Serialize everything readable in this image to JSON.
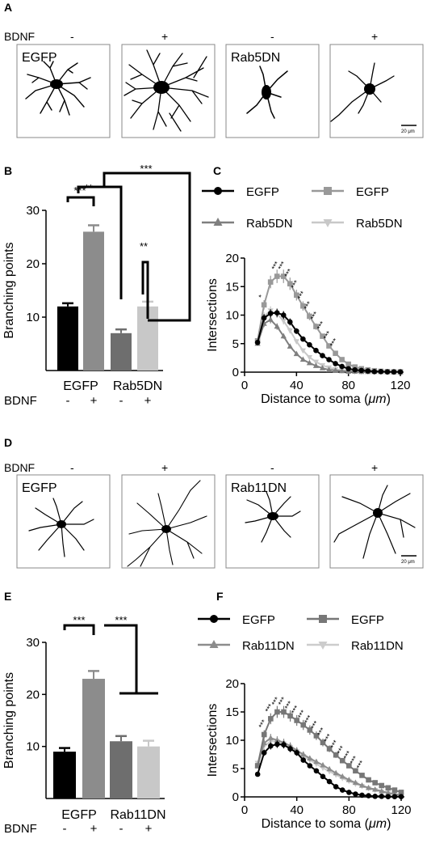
{
  "panels": {
    "A": {
      "letter": "A",
      "bdnf_label": "BDNF",
      "signs": [
        "-",
        "+",
        "-",
        "+"
      ],
      "box_labels": [
        "EGFP",
        "",
        "Rab5DN",
        ""
      ],
      "scale_bar": "20 μm"
    },
    "D": {
      "letter": "D",
      "bdnf_label": "BDNF",
      "signs": [
        "-",
        "+",
        "-",
        "+"
      ],
      "box_labels": [
        "EGFP",
        "",
        "Rab11DN",
        ""
      ],
      "scale_bar": "20 μm"
    }
  },
  "chart_data": [
    {
      "id": "B",
      "letter": "B",
      "type": "bar",
      "ylabel": "Branching points",
      "yticks": [
        10,
        20,
        30
      ],
      "ylim": [
        0,
        30
      ],
      "categories": [
        "EGFP -",
        "EGFP +",
        "Rab5DN -",
        "Rab5DN +"
      ],
      "values": [
        12,
        26,
        7,
        12
      ],
      "errors": [
        0.6,
        1.2,
        0.7,
        0.9
      ],
      "colors": [
        "#000000",
        "#8c8c8c",
        "#6e6e6e",
        "#c8c8c8"
      ],
      "group_labels": [
        "EGFP",
        "Rab5DN"
      ],
      "bdnf_label": "BDNF",
      "signs": [
        "-",
        "+",
        "-",
        "+"
      ],
      "significance": [
        {
          "from": 0,
          "to": 1,
          "label": "***"
        },
        {
          "from": 1,
          "to": 2,
          "label": "**"
        },
        {
          "from": 2,
          "to": 3,
          "label": "**"
        },
        {
          "from": 0,
          "to": 3,
          "label": "***"
        }
      ]
    },
    {
      "id": "C",
      "letter": "C",
      "type": "line",
      "xlabel_prefix": "Distance to soma (",
      "xlabel_unit": "μm",
      "xlabel_suffix": ")",
      "ylabel": "Intersections",
      "xticks": [
        0,
        40,
        80,
        120
      ],
      "yticks": [
        0,
        5,
        10,
        15,
        20
      ],
      "xlim": [
        0,
        120
      ],
      "ylim": [
        0,
        20
      ],
      "x": [
        10,
        15,
        20,
        25,
        30,
        35,
        40,
        45,
        50,
        55,
        60,
        65,
        70,
        75,
        80,
        85,
        90,
        95,
        100,
        105,
        110,
        115,
        120
      ],
      "series": [
        {
          "name": "EGFP",
          "color": "#000000",
          "marker": "circle",
          "values": [
            5.2,
            9.5,
            10.3,
            10.4,
            10,
            8.8,
            7.2,
            5.8,
            4.8,
            3.8,
            2.9,
            2.2,
            1.5,
            1.0,
            0.6,
            0.4,
            0.3,
            0.2,
            0.1,
            0.1,
            0.05,
            0.05,
            0.05
          ]
        },
        {
          "name": "EGFP",
          "color": "#999999",
          "marker": "square",
          "values": [
            5.5,
            11.8,
            15.8,
            16.8,
            16.8,
            15.5,
            13.5,
            11.6,
            9.8,
            8.0,
            6.3,
            4.6,
            3.3,
            2.2,
            1.4,
            0.9,
            0.6,
            0.4,
            0.25,
            0.15,
            0.1,
            0.05,
            0.05
          ]
        },
        {
          "name": "Rab5DN",
          "color": "#7f7f7f",
          "marker": "triangle-up",
          "values": [
            5.0,
            8.5,
            9.2,
            8.0,
            6.3,
            4.5,
            3.2,
            2.2,
            1.6,
            1.1,
            0.7,
            0.4,
            0.3,
            0.2,
            0.1,
            0.1,
            0.05,
            0.05,
            0.05,
            0.05,
            0.05,
            0.05,
            0.05
          ]
        },
        {
          "name": "Rab5DN",
          "color": "#c8c8c8",
          "marker": "triangle-down",
          "values": [
            5.3,
            9.8,
            10.8,
            10.2,
            9.0,
            7.3,
            5.4,
            3.8,
            2.6,
            1.8,
            1.2,
            0.8,
            0.5,
            0.3,
            0.2,
            0.1,
            0.1,
            0.05,
            0.05,
            0.05,
            0.05,
            0.05,
            0.05
          ]
        }
      ],
      "stars": [
        {
          "x": 15,
          "label": "*"
        },
        {
          "x": 25,
          "label": "***"
        },
        {
          "x": 30,
          "label": "***"
        },
        {
          "x": 35,
          "label": "***"
        },
        {
          "x": 40,
          "label": "***"
        },
        {
          "x": 45,
          "label": "***"
        },
        {
          "x": 50,
          "label": "***"
        },
        {
          "x": 55,
          "label": "***"
        },
        {
          "x": 60,
          "label": "***"
        },
        {
          "x": 65,
          "label": "***"
        },
        {
          "x": 70,
          "label": "***"
        }
      ]
    },
    {
      "id": "E",
      "letter": "E",
      "type": "bar",
      "ylabel": "Branching points",
      "yticks": [
        10,
        20,
        30
      ],
      "ylim": [
        0,
        30
      ],
      "categories": [
        "EGFP -",
        "EGFP +",
        "Rab11DN -",
        "Rab11DN +"
      ],
      "values": [
        9,
        23,
        11,
        10
      ],
      "errors": [
        0.7,
        1.5,
        1.0,
        1.1
      ],
      "colors": [
        "#000000",
        "#8c8c8c",
        "#6e6e6e",
        "#c8c8c8"
      ],
      "group_labels": [
        "EGFP",
        "Rab11DN"
      ],
      "bdnf_label": "BDNF",
      "signs": [
        "-",
        "+",
        "-",
        "+"
      ],
      "significance": [
        {
          "from": 0,
          "to": 1,
          "label": "***"
        },
        {
          "from": 1,
          "to": "2-3",
          "label": "***"
        }
      ]
    },
    {
      "id": "F",
      "letter": "F",
      "type": "line",
      "xlabel_prefix": "Distance to soma (",
      "xlabel_unit": "μm",
      "xlabel_suffix": ")",
      "ylabel": "Intersections",
      "xticks": [
        0,
        40,
        80,
        120
      ],
      "yticks": [
        0,
        5,
        10,
        15,
        20
      ],
      "xlim": [
        0,
        120
      ],
      "ylim": [
        0,
        20
      ],
      "x": [
        10,
        15,
        20,
        25,
        30,
        35,
        40,
        45,
        50,
        55,
        60,
        65,
        70,
        75,
        80,
        85,
        90,
        95,
        100,
        105,
        110,
        115,
        120
      ],
      "series": [
        {
          "name": "EGFP",
          "color": "#000000",
          "marker": "circle",
          "values": [
            4.0,
            7.8,
            9.0,
            9.3,
            9.2,
            8.5,
            7.8,
            6.5,
            5.5,
            4.6,
            3.6,
            2.7,
            1.8,
            1.2,
            0.8,
            0.5,
            0.3,
            0.2,
            0.1,
            0.1,
            0.05,
            0.05,
            0.05
          ]
        },
        {
          "name": "EGFP",
          "color": "#777777",
          "marker": "square",
          "values": [
            5.5,
            11.0,
            13.8,
            15.0,
            15.0,
            14.3,
            13.5,
            12.7,
            11.8,
            10.8,
            9.6,
            8.5,
            7.4,
            6.4,
            5.5,
            4.6,
            3.8,
            3.0,
            2.5,
            2.0,
            1.6,
            1.2,
            0.8
          ]
        },
        {
          "name": "Rab11DN",
          "color": "#8c8c8c",
          "marker": "triangle-up",
          "values": [
            5.5,
            9.5,
            10.4,
            10.0,
            9.6,
            9.0,
            8.2,
            7.5,
            6.8,
            6.2,
            5.6,
            4.9,
            4.2,
            3.6,
            3.0,
            2.5,
            2.0,
            1.6,
            1.3,
            1.0,
            0.7,
            0.5,
            0.3
          ]
        },
        {
          "name": "Rab11DN",
          "color": "#cccccc",
          "marker": "triangle-down",
          "values": [
            6.0,
            9.0,
            9.8,
            9.8,
            9.4,
            8.8,
            8.0,
            7.2,
            6.5,
            5.8,
            5.1,
            4.5,
            3.9,
            3.3,
            2.8,
            2.3,
            1.9,
            1.5,
            1.2,
            0.9,
            0.7,
            0.5,
            0.3
          ]
        }
      ],
      "stars": [
        {
          "x": 15,
          "label": "***"
        },
        {
          "x": 20,
          "label": "***"
        },
        {
          "x": 25,
          "label": "***"
        },
        {
          "x": 30,
          "label": "***"
        },
        {
          "x": 35,
          "label": "***"
        },
        {
          "x": 40,
          "label": "***"
        },
        {
          "x": 45,
          "label": "***"
        },
        {
          "x": 50,
          "label": "***"
        },
        {
          "x": 55,
          "label": "***"
        },
        {
          "x": 60,
          "label": "***"
        },
        {
          "x": 65,
          "label": "***"
        },
        {
          "x": 70,
          "label": "***"
        },
        {
          "x": 75,
          "label": "***"
        },
        {
          "x": 80,
          "label": "***"
        },
        {
          "x": 85,
          "label": "***"
        },
        {
          "x": 90,
          "label": "***"
        }
      ]
    }
  ]
}
